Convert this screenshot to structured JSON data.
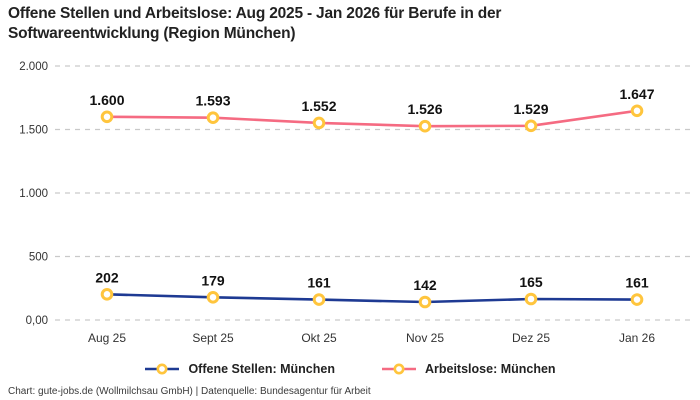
{
  "title": "Offene Stellen und Arbeitslose: Aug 2025 - Jan 2026 für Berufe in der Softwareentwicklung (Region München)",
  "footer": "Chart: gute-jobs.de (Wollmilchsau GmbH) | Datenquelle: Bundesagentur für Arbeit",
  "colors": {
    "offene": "#1E3A93",
    "arbeitslose": "#F56B82",
    "marker_ring": "#FFC53D",
    "marker_fill": "#FFFFFF",
    "grid": "#C9C9C9",
    "axis_text": "#333333",
    "value_text": "#111111"
  },
  "chart_data": {
    "type": "line",
    "categories": [
      "Aug 25",
      "Sept 25",
      "Okt 25",
      "Nov 25",
      "Dez 25",
      "Jan 26"
    ],
    "series": [
      {
        "name": "Offene Stellen: München",
        "color_key": "offene",
        "values": [
          202,
          179,
          161,
          142,
          165,
          161
        ],
        "labels": [
          "202",
          "179",
          "161",
          "142",
          "165",
          "161"
        ]
      },
      {
        "name": "Arbeitslose: München",
        "color_key": "arbeitslose",
        "values": [
          1600,
          1593,
          1552,
          1526,
          1529,
          1647
        ],
        "labels": [
          "1.600",
          "1.593",
          "1.552",
          "1.526",
          "1.529",
          "1.647"
        ]
      }
    ],
    "ylim": [
      0,
      2000
    ],
    "yticks": [
      {
        "value": 0,
        "label": "0,00"
      },
      {
        "value": 500,
        "label": "500"
      },
      {
        "value": 1000,
        "label": "1.000"
      },
      {
        "value": 1500,
        "label": "1.500"
      },
      {
        "value": 2000,
        "label": "2.000"
      }
    ],
    "grid": true,
    "legend_position": "bottom"
  }
}
